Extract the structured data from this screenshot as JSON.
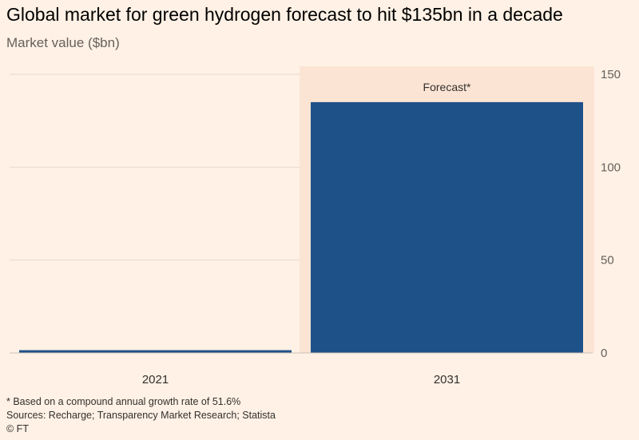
{
  "header": {
    "title": "Global market for green hydrogen forecast to hit $135bn in a decade",
    "subtitle": "Market value ($bn)"
  },
  "footer": {
    "note": "* Based on a compound annual growth rate of 51.6%",
    "sources": "Sources: Recharge; Transparency Market Research; Statista",
    "copyright": "© FT"
  },
  "colors": {
    "background": "#FFF1E5",
    "bar": "#1F5189",
    "forecast_band": "#FCE4D4",
    "gridline": "#E6D9CE"
  },
  "chart_data": {
    "type": "bar",
    "title": "Global market for green hydrogen forecast to hit $135bn in a decade",
    "ylabel": "Market value ($bn)",
    "xlabel": "",
    "categories": [
      "2021",
      "2031"
    ],
    "values": [
      1.5,
      135
    ],
    "ylim": [
      0,
      150
    ],
    "yticks": [
      0,
      50,
      100,
      150
    ],
    "ytick_labels": [
      "0",
      "50",
      "100",
      "150"
    ],
    "y_axis_side": "right",
    "grid": true,
    "annotation": {
      "label": "Forecast*",
      "category": "2031"
    }
  }
}
